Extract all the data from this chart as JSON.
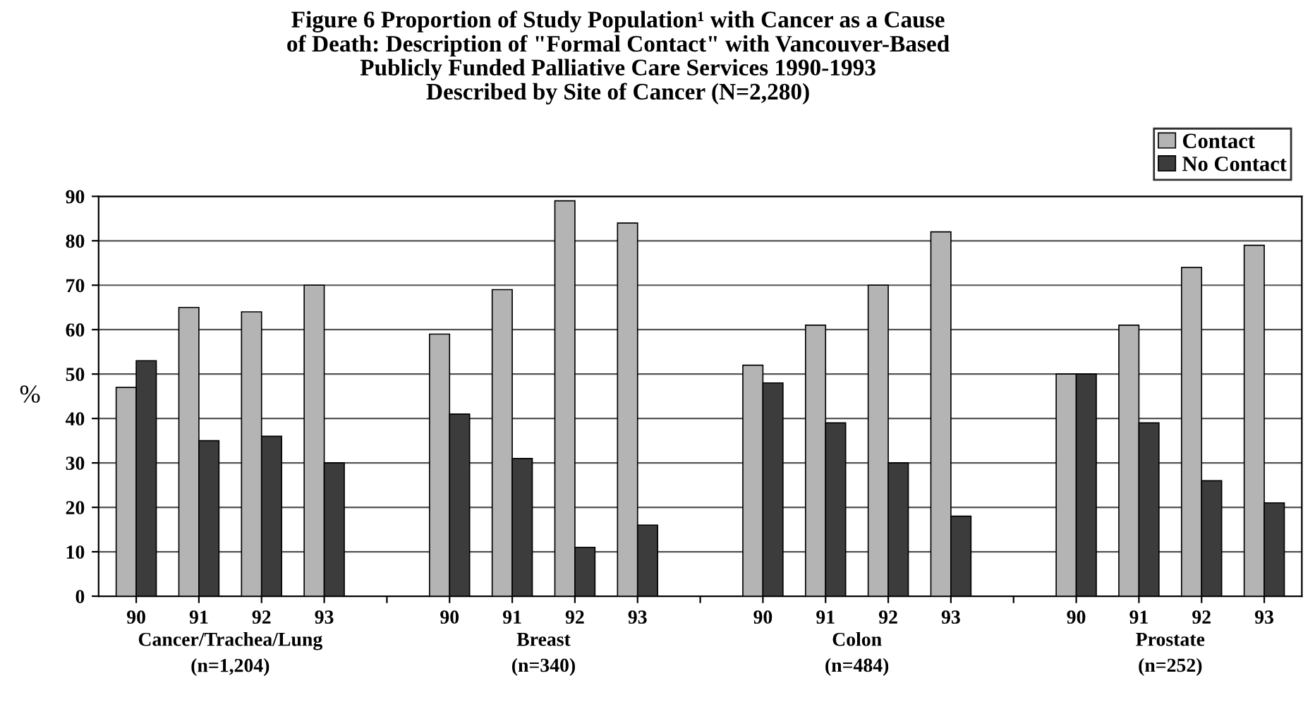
{
  "chart_data": {
    "type": "bar",
    "title": "Figure 6 Proportion of Study Population¹ with Cancer as a Cause\nof Death: Description of \"Formal Contact\" with Vancouver-Based\nPublicly Funded Palliative Care Services 1990-1993\nDescribed by Site of Cancer (N=2,280)",
    "ylabel": "%",
    "categories": [
      "90",
      "91",
      "92",
      "93",
      null,
      "90",
      "91",
      "92",
      "93",
      null,
      "90",
      "91",
      "92",
      "93",
      null,
      "90",
      "91",
      "92",
      "93"
    ],
    "series": [
      {
        "name": "Contact",
        "color": "#b4b4b4",
        "values": [
          47,
          65,
          64,
          70,
          null,
          59,
          69,
          89,
          84,
          null,
          52,
          61,
          70,
          82,
          null,
          50,
          61,
          74,
          79
        ]
      },
      {
        "name": "No Contact",
        "color": "#3c3c3c",
        "values": [
          53,
          35,
          36,
          30,
          null,
          41,
          31,
          11,
          16,
          null,
          48,
          39,
          30,
          18,
          null,
          50,
          39,
          26,
          21
        ]
      }
    ],
    "annotations": [
      "Cancer/Trachea/Lung\n(n=1,204)",
      "Breast\n(n=340)",
      "Colon\n(n=484)",
      "Prostate\n(n=252)"
    ],
    "ylim": [
      0,
      90
    ],
    "yticks": [
      0,
      10,
      20,
      30,
      40,
      50,
      60,
      70,
      80,
      90
    ],
    "grid": "y",
    "legend": "top right"
  }
}
